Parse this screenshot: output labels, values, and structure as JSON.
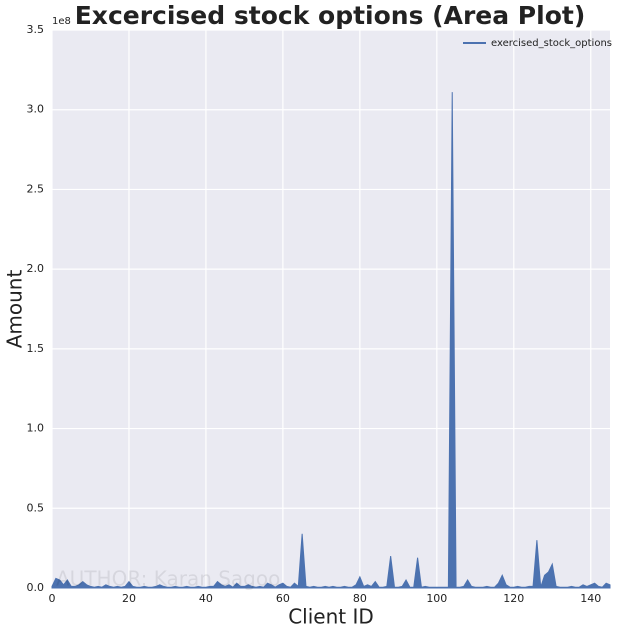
{
  "chart_data": {
    "type": "area",
    "title": "Excercised stock options (Area Plot)",
    "x_label": "Client ID",
    "y_label": "Amount",
    "y_offset_label": "1e8",
    "watermark": "AUTHOR: Karan Sagoo",
    "xlim": [
      0,
      145
    ],
    "xticks": [
      0,
      20,
      40,
      60,
      80,
      100,
      120,
      140
    ],
    "ylim": [
      0,
      3.5
    ],
    "yticks": [
      {
        "value": 0,
        "label": "0.0"
      },
      0.5,
      {
        "value": 1,
        "label": "1.0"
      },
      1.5,
      {
        "value": 2,
        "label": "2.0"
      },
      2.5,
      {
        "value": 3,
        "label": "3.0"
      },
      3.5
    ],
    "grid": true,
    "legend": "upper right",
    "x": [
      0,
      1,
      2,
      3,
      4,
      5,
      6,
      7,
      8,
      9,
      10,
      11,
      12,
      13,
      14,
      15,
      16,
      17,
      18,
      19,
      20,
      21,
      22,
      23,
      24,
      25,
      26,
      27,
      28,
      29,
      30,
      31,
      32,
      33,
      34,
      35,
      36,
      37,
      38,
      39,
      40,
      41,
      42,
      43,
      44,
      45,
      46,
      47,
      48,
      49,
      50,
      51,
      52,
      53,
      54,
      55,
      56,
      57,
      58,
      59,
      60,
      61,
      62,
      63,
      64,
      65,
      66,
      67,
      68,
      69,
      70,
      71,
      72,
      73,
      74,
      75,
      76,
      77,
      78,
      79,
      80,
      81,
      82,
      83,
      84,
      85,
      86,
      87,
      88,
      89,
      90,
      91,
      92,
      93,
      94,
      95,
      96,
      97,
      98,
      99,
      100,
      101,
      102,
      103,
      104,
      105,
      106,
      107,
      108,
      109,
      110,
      111,
      112,
      113,
      114,
      115,
      116,
      117,
      118,
      119,
      120,
      121,
      122,
      123,
      124,
      125,
      126,
      127,
      128,
      129,
      130,
      131,
      132,
      133,
      134,
      135,
      136,
      137,
      138,
      139,
      140,
      141,
      142,
      143,
      144,
      145
    ],
    "series": [
      {
        "name": "exercised_stock_options",
        "color": "#4c72b0",
        "values": [
          0.01,
          0.06,
          0.05,
          0.02,
          0.05,
          0.01,
          0.01,
          0.02,
          0.04,
          0.02,
          0.01,
          0.005,
          0.01,
          0.005,
          0.02,
          0.01,
          0.005,
          0.01,
          0.005,
          0.01,
          0.04,
          0.01,
          0.005,
          0.005,
          0.01,
          0.005,
          0.005,
          0.01,
          0.02,
          0.01,
          0.005,
          0.005,
          0.01,
          0.005,
          0.005,
          0.01,
          0.005,
          0.005,
          0.01,
          0.005,
          0.005,
          0.01,
          0.01,
          0.04,
          0.02,
          0.01,
          0.02,
          0.005,
          0.03,
          0.01,
          0.01,
          0.02,
          0.01,
          0.005,
          0.01,
          0.005,
          0.03,
          0.02,
          0.005,
          0.02,
          0.03,
          0.01,
          0.005,
          0.03,
          0.01,
          0.34,
          0.01,
          0.005,
          0.01,
          0.005,
          0.005,
          0.01,
          0.005,
          0.01,
          0.005,
          0.005,
          0.01,
          0.005,
          0.005,
          0.02,
          0.07,
          0.01,
          0.02,
          0.01,
          0.04,
          0.005,
          0.005,
          0.01,
          0.2,
          0.005,
          0.005,
          0.01,
          0.05,
          0.005,
          0.005,
          0.19,
          0.005,
          0.01,
          0.005,
          0.005,
          0.005,
          0.005,
          0.005,
          0.005,
          3.11,
          0.005,
          0.005,
          0.01,
          0.05,
          0.01,
          0.005,
          0.005,
          0.005,
          0.01,
          0.005,
          0.005,
          0.03,
          0.08,
          0.02,
          0.005,
          0.005,
          0.01,
          0.005,
          0.005,
          0.01,
          0.01,
          0.3,
          0.005,
          0.08,
          0.1,
          0.15,
          0.01,
          0.005,
          0.005,
          0.005,
          0.01,
          0.005,
          0.005,
          0.02,
          0.01,
          0.02,
          0.03,
          0.01,
          0.005,
          0.03,
          0.02
        ]
      }
    ]
  }
}
